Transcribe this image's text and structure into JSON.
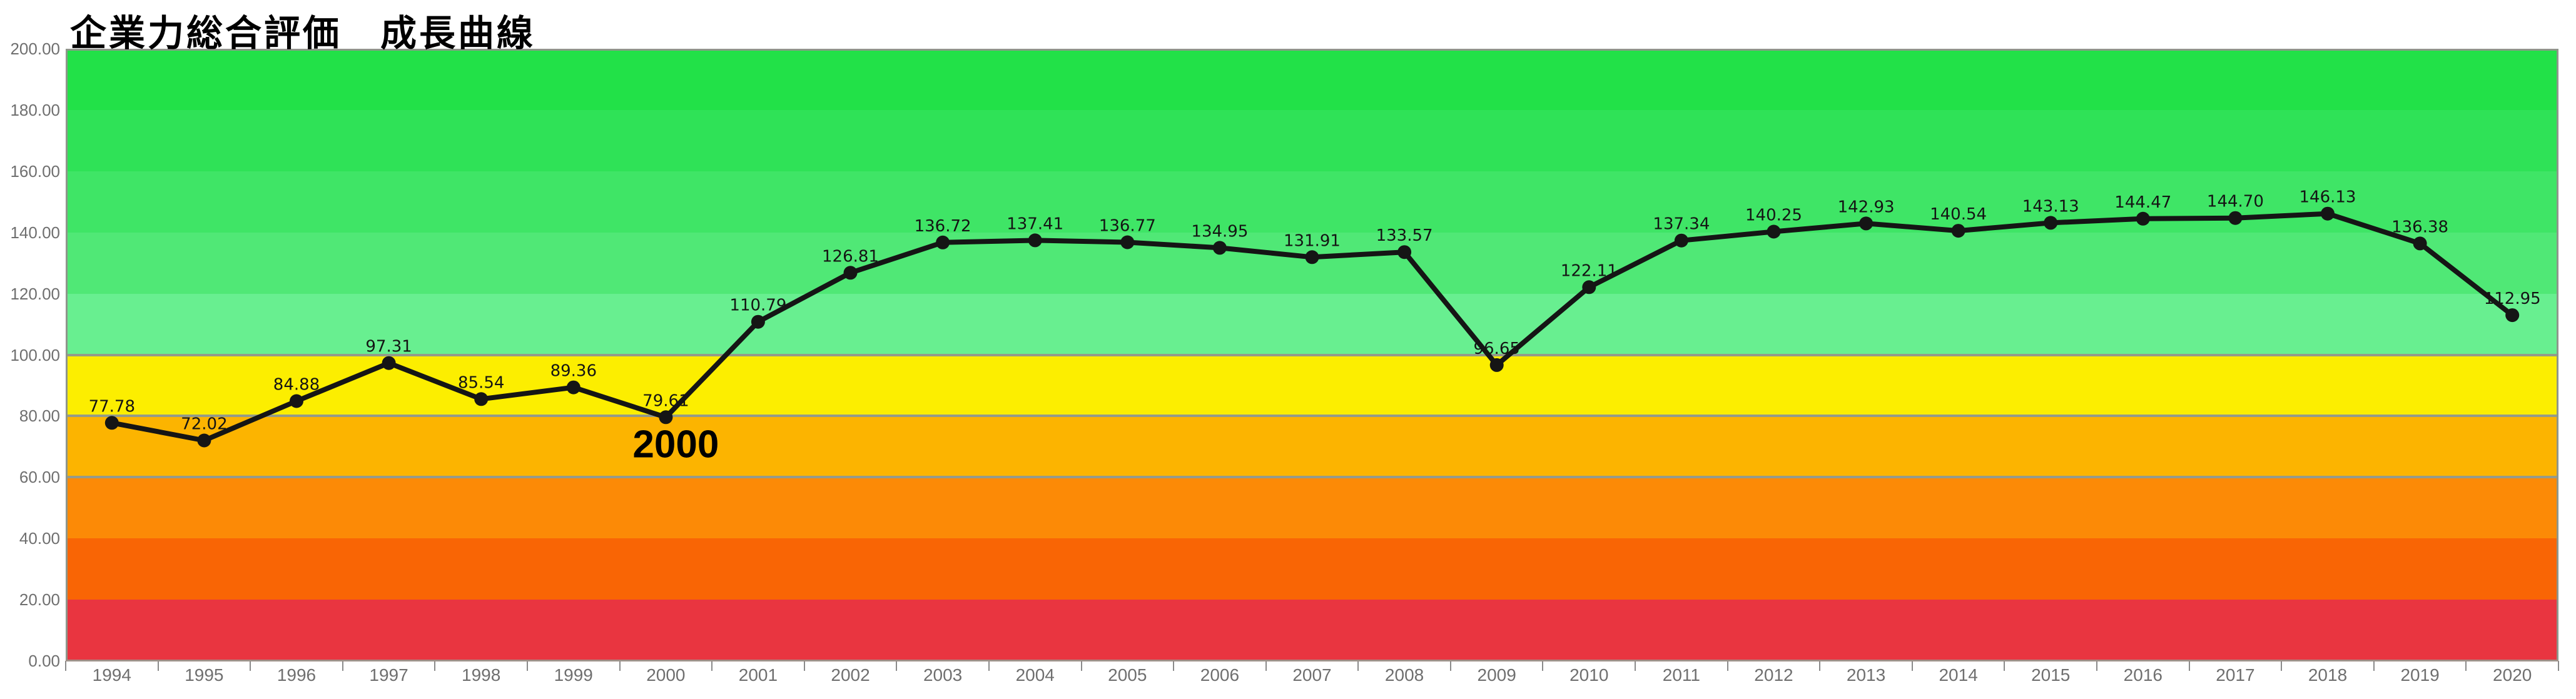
{
  "title": "企業力総合評価　成長曲線",
  "chart_data": {
    "type": "line",
    "title": "企業力総合評価　成長曲線",
    "categories": [
      "1994",
      "1995",
      "1996",
      "1997",
      "1998",
      "1999",
      "2000",
      "2001",
      "2002",
      "2003",
      "2004",
      "2005",
      "2006",
      "2007",
      "2008",
      "2009",
      "2010",
      "2011",
      "2012",
      "2013",
      "2014",
      "2015",
      "2016",
      "2017",
      "2018",
      "2019",
      "2020"
    ],
    "series": [
      {
        "name": "企業力総合評価",
        "color": "#151515",
        "values": [
          77.78,
          72.02,
          84.88,
          97.31,
          85.54,
          89.36,
          79.61,
          110.79,
          126.81,
          136.72,
          137.41,
          136.77,
          134.95,
          131.91,
          133.57,
          96.65,
          122.11,
          137.34,
          140.25,
          142.93,
          140.54,
          143.13,
          144.47,
          144.7,
          146.13,
          136.38,
          112.95
        ],
        "value_labels": [
          "77.78",
          "72.02",
          "84.88",
          "97.31",
          "85.54",
          "89.36",
          "79.61",
          "110.79",
          "126.81",
          "136.72",
          "137.41",
          "136.77",
          "134.95",
          "131.91",
          "133.57",
          "96.65",
          "122.11",
          "137.34",
          "140.25",
          "142.93",
          "140.54",
          "143.13",
          "144.47",
          "144.70",
          "146.13",
          "136.38",
          "112.95"
        ]
      }
    ],
    "ylim": [
      0,
      200
    ],
    "y_tick_step": 20,
    "y_tick_labels": [
      "0.00",
      "20.00",
      "40.00",
      "60.00",
      "80.00",
      "100.00",
      "120.00",
      "140.00",
      "160.00",
      "180.00",
      "200.00"
    ],
    "grid_values": [
      60,
      80,
      100
    ],
    "legend": "none",
    "annotation": {
      "text": "2000",
      "category": "2000",
      "value": 79.61
    },
    "bands": [
      {
        "from": 0,
        "to": 20,
        "color": "#e93540"
      },
      {
        "from": 20,
        "to": 40,
        "color": "#f96505"
      },
      {
        "from": 40,
        "to": 60,
        "color": "#fc8a06"
      },
      {
        "from": 60,
        "to": 80,
        "color": "#fcb400"
      },
      {
        "from": 80,
        "to": 100,
        "color": "#fcee00"
      },
      {
        "from": 100,
        "to": 120,
        "color": "#68ef90"
      },
      {
        "from": 120,
        "to": 140,
        "color": "#50e876"
      },
      {
        "from": 140,
        "to": 160,
        "color": "#3fe566"
      },
      {
        "from": 160,
        "to": 180,
        "color": "#2fe257"
      },
      {
        "from": 180,
        "to": 200,
        "color": "#22e148"
      }
    ],
    "colors": {
      "gridline": "#949b8a",
      "plot_border": "#8f968b",
      "axis_text": "#6f6f6f",
      "value_label_text": "#141414",
      "annotation_text": "#000000",
      "tick": "#8a8a8a",
      "baseline": "#a09189"
    }
  }
}
